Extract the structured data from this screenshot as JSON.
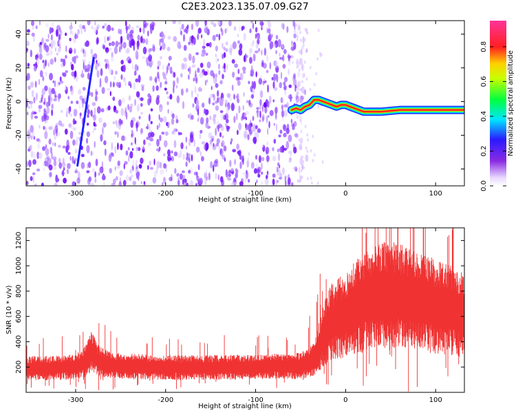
{
  "title": "C2E3.2023.135.07.09.G27",
  "chart_data": [
    {
      "type": "heatmap",
      "xlabel": "Height of straight line (km)",
      "ylabel": "Frequency (Hz)",
      "xlim": [
        -355,
        132
      ],
      "ylim": [
        -50,
        48
      ],
      "xticks": [
        -300,
        -200,
        -100,
        0,
        100
      ],
      "yticks": [
        -40,
        -20,
        0,
        20,
        40
      ],
      "colorbar": {
        "label": "Normalized spectral amplitude",
        "range": [
          0,
          0.95
        ],
        "ticks": [
          0.0,
          0.2,
          0.4,
          0.6,
          0.8
        ],
        "colormap": "white-purple-blue-cyan-green-yellow-red-pink"
      },
      "noise_region_x": [
        -355,
        -55
      ],
      "signal_trace": {
        "x": [
          -60,
          -55,
          -50,
          -45,
          -40,
          -35,
          -30,
          -25,
          -20,
          -15,
          -10,
          -5,
          0,
          5,
          10,
          15,
          20,
          30,
          40,
          60,
          80,
          100,
          120,
          132
        ],
        "y": [
          -5,
          -4,
          -5,
          -3,
          -2,
          1,
          1,
          0,
          -1,
          -2,
          -3,
          -2,
          -2,
          -3,
          -4,
          -5,
          -6,
          -6,
          -6,
          -5,
          -5,
          -5,
          -5,
          -5
        ]
      },
      "streak": {
        "x": [
          -298,
          -280
        ],
        "y": [
          -38,
          26
        ]
      }
    },
    {
      "type": "line",
      "xlabel": "Height of straight line (km)",
      "ylabel": "SNR (10 * v/v)",
      "xlim": [
        -355,
        132
      ],
      "ylim": [
        0,
        1300
      ],
      "xticks": [
        -300,
        -200,
        -100,
        0,
        100
      ],
      "yticks": [
        200,
        400,
        600,
        800,
        1000,
        1200
      ],
      "color": "#f03232",
      "envelope": {
        "x": [
          -355,
          -320,
          -300,
          -290,
          -282,
          -275,
          -260,
          -200,
          -100,
          -50,
          -35,
          -25,
          -15,
          0,
          20,
          40,
          60,
          80,
          100,
          120,
          132
        ],
        "y": [
          190,
          195,
          200,
          240,
          330,
          250,
          210,
          195,
          200,
          210,
          260,
          450,
          560,
          610,
          720,
          780,
          760,
          720,
          680,
          640,
          610
        ]
      }
    }
  ]
}
